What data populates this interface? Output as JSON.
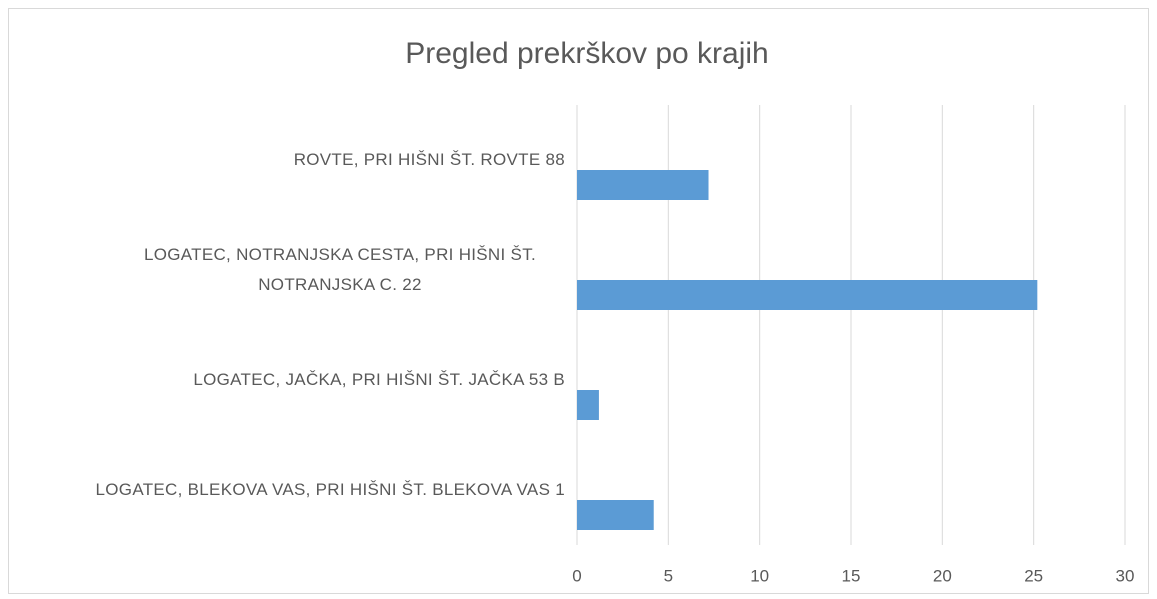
{
  "chart_data": {
    "type": "bar",
    "orientation": "horizontal",
    "title": "Pregled prekrškov po krajih",
    "categories": [
      "ROVTE, PRI HIŠNI ŠT. ROVTE 88",
      "LOGATEC, NOTRANJSKA CESTA, PRI HIŠNI ŠT. NOTRANJSKA C. 22",
      "LOGATEC, JAČKA, PRI HIŠNI ŠT. JAČKA 53 B",
      "LOGATEC, BLEKOVA VAS, PRI HIŠNI ŠT. BLEKOVA VAS 1"
    ],
    "values": [
      7.2,
      25.2,
      1.2,
      4.2
    ],
    "color": "#5b9bd5",
    "xlim": [
      0,
      30
    ],
    "xticks": [
      0,
      5,
      10,
      15,
      20,
      25,
      30
    ],
    "grid": true
  }
}
